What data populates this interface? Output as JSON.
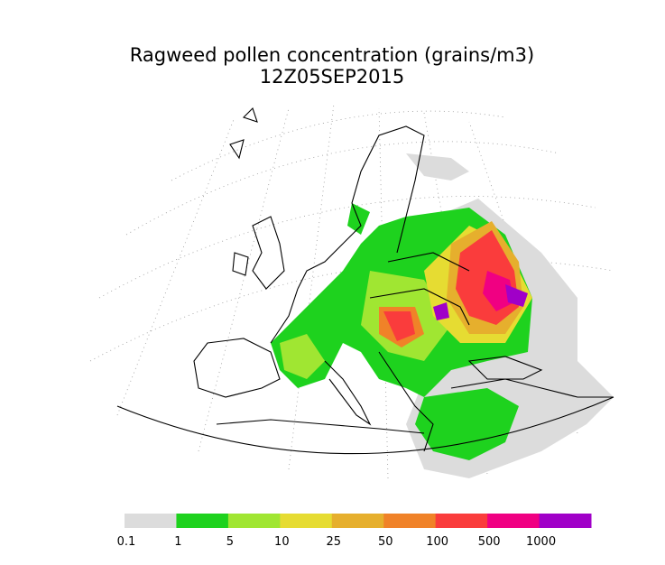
{
  "title": "Ragweed pollen concentration (grains/m3)",
  "subtitle": "12Z05SEP2015",
  "legend": {
    "levels": [
      0.1,
      1,
      5,
      10,
      25,
      50,
      100,
      500,
      1000
    ],
    "colors": [
      "#dcdcdc",
      "#1ed21e",
      "#a0e632",
      "#e6dc32",
      "#e6af2d",
      "#f08228",
      "#fa3c3c",
      "#f00082",
      "#a000c8"
    ]
  }
}
